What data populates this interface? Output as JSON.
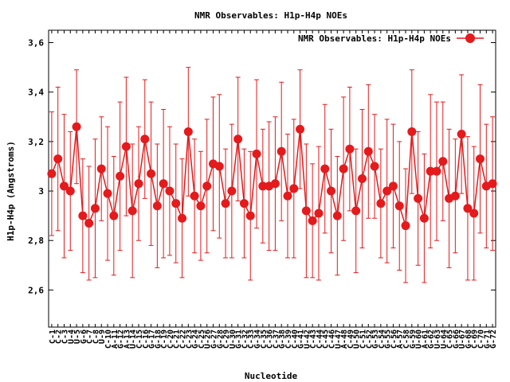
{
  "chart_data": {
    "type": "line",
    "title": "NMR Observables: H1p-H4p NOEs",
    "xlabel": "Nucleotide",
    "ylabel": "H1p-H4p (Angstroms)",
    "ylim": [
      2.45,
      3.65
    ],
    "yticks": [
      2.6,
      2.8,
      3,
      3.2,
      3.4,
      3.6
    ],
    "ytick_labels": [
      "2,6",
      "2,8",
      "3",
      "3,2",
      "3,4",
      "3,6"
    ],
    "grid": false,
    "legend_position": "top-right",
    "series": [
      {
        "name": "NMR Observables: H1p-H4p NOEs",
        "color": "#e41a1c",
        "x": [
          1,
          2,
          3,
          4,
          5,
          6,
          7,
          8,
          9,
          10,
          11,
          12,
          13,
          14,
          15,
          16,
          17,
          18,
          19,
          20,
          21,
          22,
          23,
          24,
          25,
          26,
          27,
          28,
          29,
          30,
          31,
          32,
          33,
          34,
          35,
          36,
          37,
          38,
          39,
          40,
          41,
          42,
          43,
          44,
          45,
          46,
          47,
          48,
          49,
          50,
          51,
          52,
          53,
          54,
          55,
          56,
          57,
          58,
          59,
          60,
          61,
          62,
          63,
          64,
          65,
          66,
          67,
          68,
          69,
          70,
          71,
          72
        ],
        "values": [
          3.07,
          3.13,
          3.02,
          3.0,
          3.26,
          2.9,
          2.87,
          2.93,
          3.09,
          2.99,
          2.9,
          3.06,
          3.18,
          2.92,
          3.03,
          3.21,
          3.07,
          2.94,
          3.03,
          3.0,
          2.95,
          2.89,
          3.24,
          2.98,
          2.94,
          3.02,
          3.11,
          3.1,
          2.95,
          3.0,
          3.21,
          2.95,
          2.9,
          3.15,
          3.02,
          3.02,
          3.03,
          3.16,
          2.98,
          3.01,
          3.25,
          2.92,
          2.88,
          2.91,
          3.09,
          3.0,
          2.9,
          3.09,
          3.17,
          2.92,
          3.05,
          3.16,
          3.1,
          2.95,
          3.0,
          3.02,
          2.94,
          2.86,
          3.24,
          2.97,
          2.89,
          3.08,
          3.08,
          3.12,
          2.97,
          2.98,
          3.23,
          2.93,
          2.91,
          3.13,
          3.02,
          3.03
        ],
        "error": [
          0.25,
          0.29,
          0.29,
          0.24,
          0.23,
          0.23,
          0.23,
          0.28,
          0.21,
          0.27,
          0.24,
          0.3,
          0.28,
          0.27,
          0.23,
          0.24,
          0.29,
          0.25,
          0.3,
          0.26,
          0.24,
          0.24,
          0.26,
          0.23,
          0.22,
          0.27,
          0.27,
          0.29,
          0.22,
          0.27,
          0.25,
          0.22,
          0.26,
          0.3,
          0.23,
          0.26,
          0.27,
          0.28,
          0.25,
          0.28,
          0.24,
          0.27,
          0.23,
          0.27,
          0.26,
          0.25,
          0.24,
          0.29,
          0.25,
          0.25,
          0.28,
          0.27,
          0.21,
          0.22,
          0.29,
          0.25,
          0.26,
          0.23,
          0.25,
          0.27,
          0.26,
          0.31,
          0.28,
          0.24,
          0.28,
          0.23,
          0.24,
          0.29,
          0.27,
          0.3,
          0.25,
          0.27
        ]
      }
    ],
    "x_tick_labels": [
      "C-1",
      "C-2",
      "C-3",
      "U-4",
      "U-5",
      "G-6",
      "C-7",
      "C-8",
      "U-9",
      "C-10",
      "A-11",
      "G-12",
      "A-13",
      "U-14",
      "C-15",
      "C-16",
      "G-17",
      "G-18",
      "C-19",
      "C-20",
      "C-21",
      "C-22",
      "C-23",
      "G-24",
      "C-25",
      "U-26",
      "G-27",
      "G-28",
      "C-29",
      "U-30",
      "G-31",
      "C-32",
      "C-33",
      "G-34",
      "C-35",
      "C-36",
      "C-37",
      "G-38",
      "C-39",
      "C-40",
      "G-41",
      "U-42",
      "C-43",
      "C-44",
      "C-45",
      "C-46",
      "U-47",
      "A-48",
      "C-49",
      "U-50",
      "C-51",
      "C-52",
      "G-53",
      "C-54",
      "G-55",
      "C-56",
      "A-57",
      "C-58",
      "G-59",
      "U-60",
      "A-61",
      "G-62",
      "U-63",
      "U-64",
      "C-65",
      "G-66",
      "U-67",
      "G-68",
      "C-69",
      "C-70",
      "G-71",
      "G-72"
    ]
  }
}
